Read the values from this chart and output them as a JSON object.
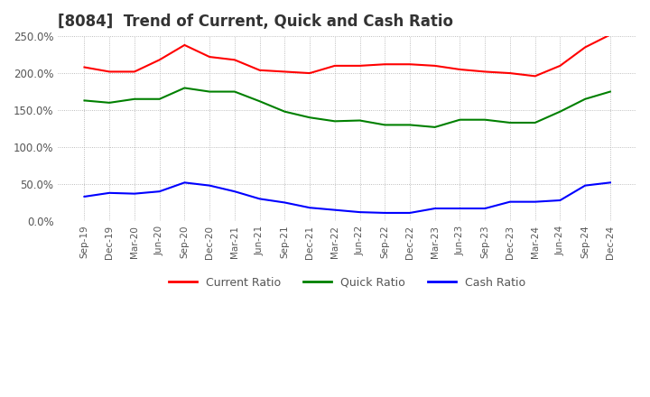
{
  "title": "[8084]  Trend of Current, Quick and Cash Ratio",
  "x_labels": [
    "Sep-19",
    "Dec-19",
    "Mar-20",
    "Jun-20",
    "Sep-20",
    "Dec-20",
    "Mar-21",
    "Jun-21",
    "Sep-21",
    "Dec-21",
    "Mar-22",
    "Jun-22",
    "Sep-22",
    "Dec-22",
    "Mar-23",
    "Jun-23",
    "Sep-23",
    "Dec-23",
    "Mar-24",
    "Jun-24",
    "Sep-24",
    "Dec-24"
  ],
  "current_ratio": [
    208,
    202,
    202,
    218,
    238,
    222,
    218,
    204,
    202,
    200,
    210,
    210,
    212,
    212,
    210,
    205,
    202,
    200,
    196,
    210,
    235,
    252
  ],
  "quick_ratio": [
    163,
    160,
    165,
    165,
    180,
    175,
    175,
    162,
    148,
    140,
    135,
    136,
    130,
    130,
    127,
    137,
    137,
    133,
    133,
    148,
    165,
    175
  ],
  "cash_ratio": [
    33,
    38,
    37,
    40,
    52,
    48,
    40,
    30,
    25,
    18,
    15,
    12,
    11,
    11,
    17,
    17,
    17,
    26,
    26,
    28,
    48,
    52
  ],
  "current_color": "#ff0000",
  "quick_color": "#008000",
  "cash_color": "#0000ff",
  "ylim": [
    0,
    250
  ],
  "yticks": [
    0,
    50,
    100,
    150,
    200,
    250
  ],
  "background_color": "#ffffff",
  "plot_bg_color": "#ffffff",
  "grid_color": "#aaaaaa",
  "title_fontsize": 12,
  "tick_label_color": "#555555"
}
